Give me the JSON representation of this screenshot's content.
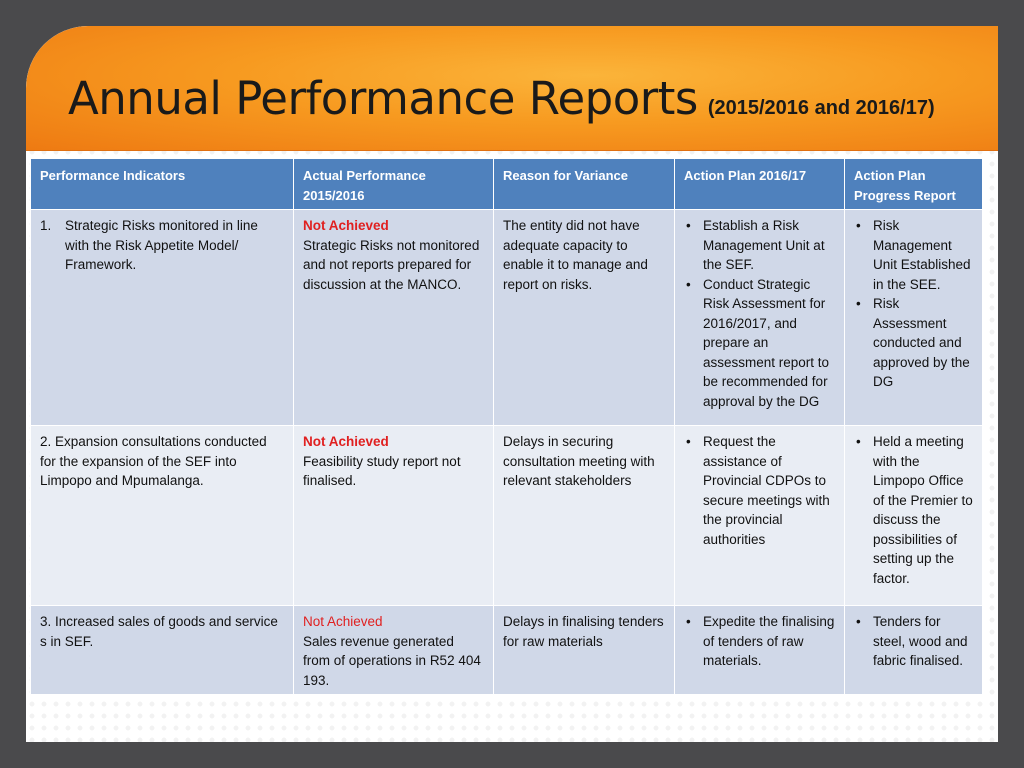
{
  "title": {
    "main": "Annual Performance Reports",
    "sub": "(2015/2016  and 2016/17)"
  },
  "table": {
    "headers": [
      "Performance Indicators",
      "Actual Performance 2015/2016",
      "Reason for Variance",
      "Action Plan 2016/17",
      "Action Plan Progress Report"
    ],
    "rows": [
      {
        "indicator_number": "1.",
        "indicator": "Strategic Risks monitored in line with the Risk Appetite Model/ Framework.",
        "status": "Not Achieved",
        "actual": "Strategic Risks not monitored and not reports prepared for discussion at the MANCO.",
        "reason": "The entity did not have adequate capacity to enable it to manage and report on risks.",
        "action_plan": [
          "Establish a Risk Management Unit at the SEF.",
          "Conduct Strategic Risk Assessment for 2016/2017, and prepare an assessment report to be recommended for approval by the DG"
        ],
        "progress": [
          "Risk Management Unit Established in the SEE.",
          "Risk Assessment conducted and approved by the DG"
        ]
      },
      {
        "indicator": "2. Expansion consultations conducted for the expansion of the SEF into Limpopo and Mpumalanga.",
        "status": "Not Achieved",
        "actual": "Feasibility study report not finalised.",
        "reason": "Delays in securing consultation meeting with relevant stakeholders",
        "action_plan": [
          "Request the assistance of Provincial CDPOs to secure meetings with the provincial authorities"
        ],
        "progress": [
          "Held a meeting with the Limpopo Office of the Premier to discuss the possibilities of setting up the factor."
        ]
      },
      {
        "indicator": "3. Increased sales of goods and service s in SEF.",
        "status": "Not Achieved",
        "actual": "Sales revenue generated from of operations in R52 404 193.",
        "reason": "Delays in finalising tenders for raw materials",
        "action_plan": [
          "Expedite the finalising of tenders of raw materials."
        ],
        "progress": [
          "Tenders for steel, wood and fabric finalised."
        ]
      }
    ]
  }
}
